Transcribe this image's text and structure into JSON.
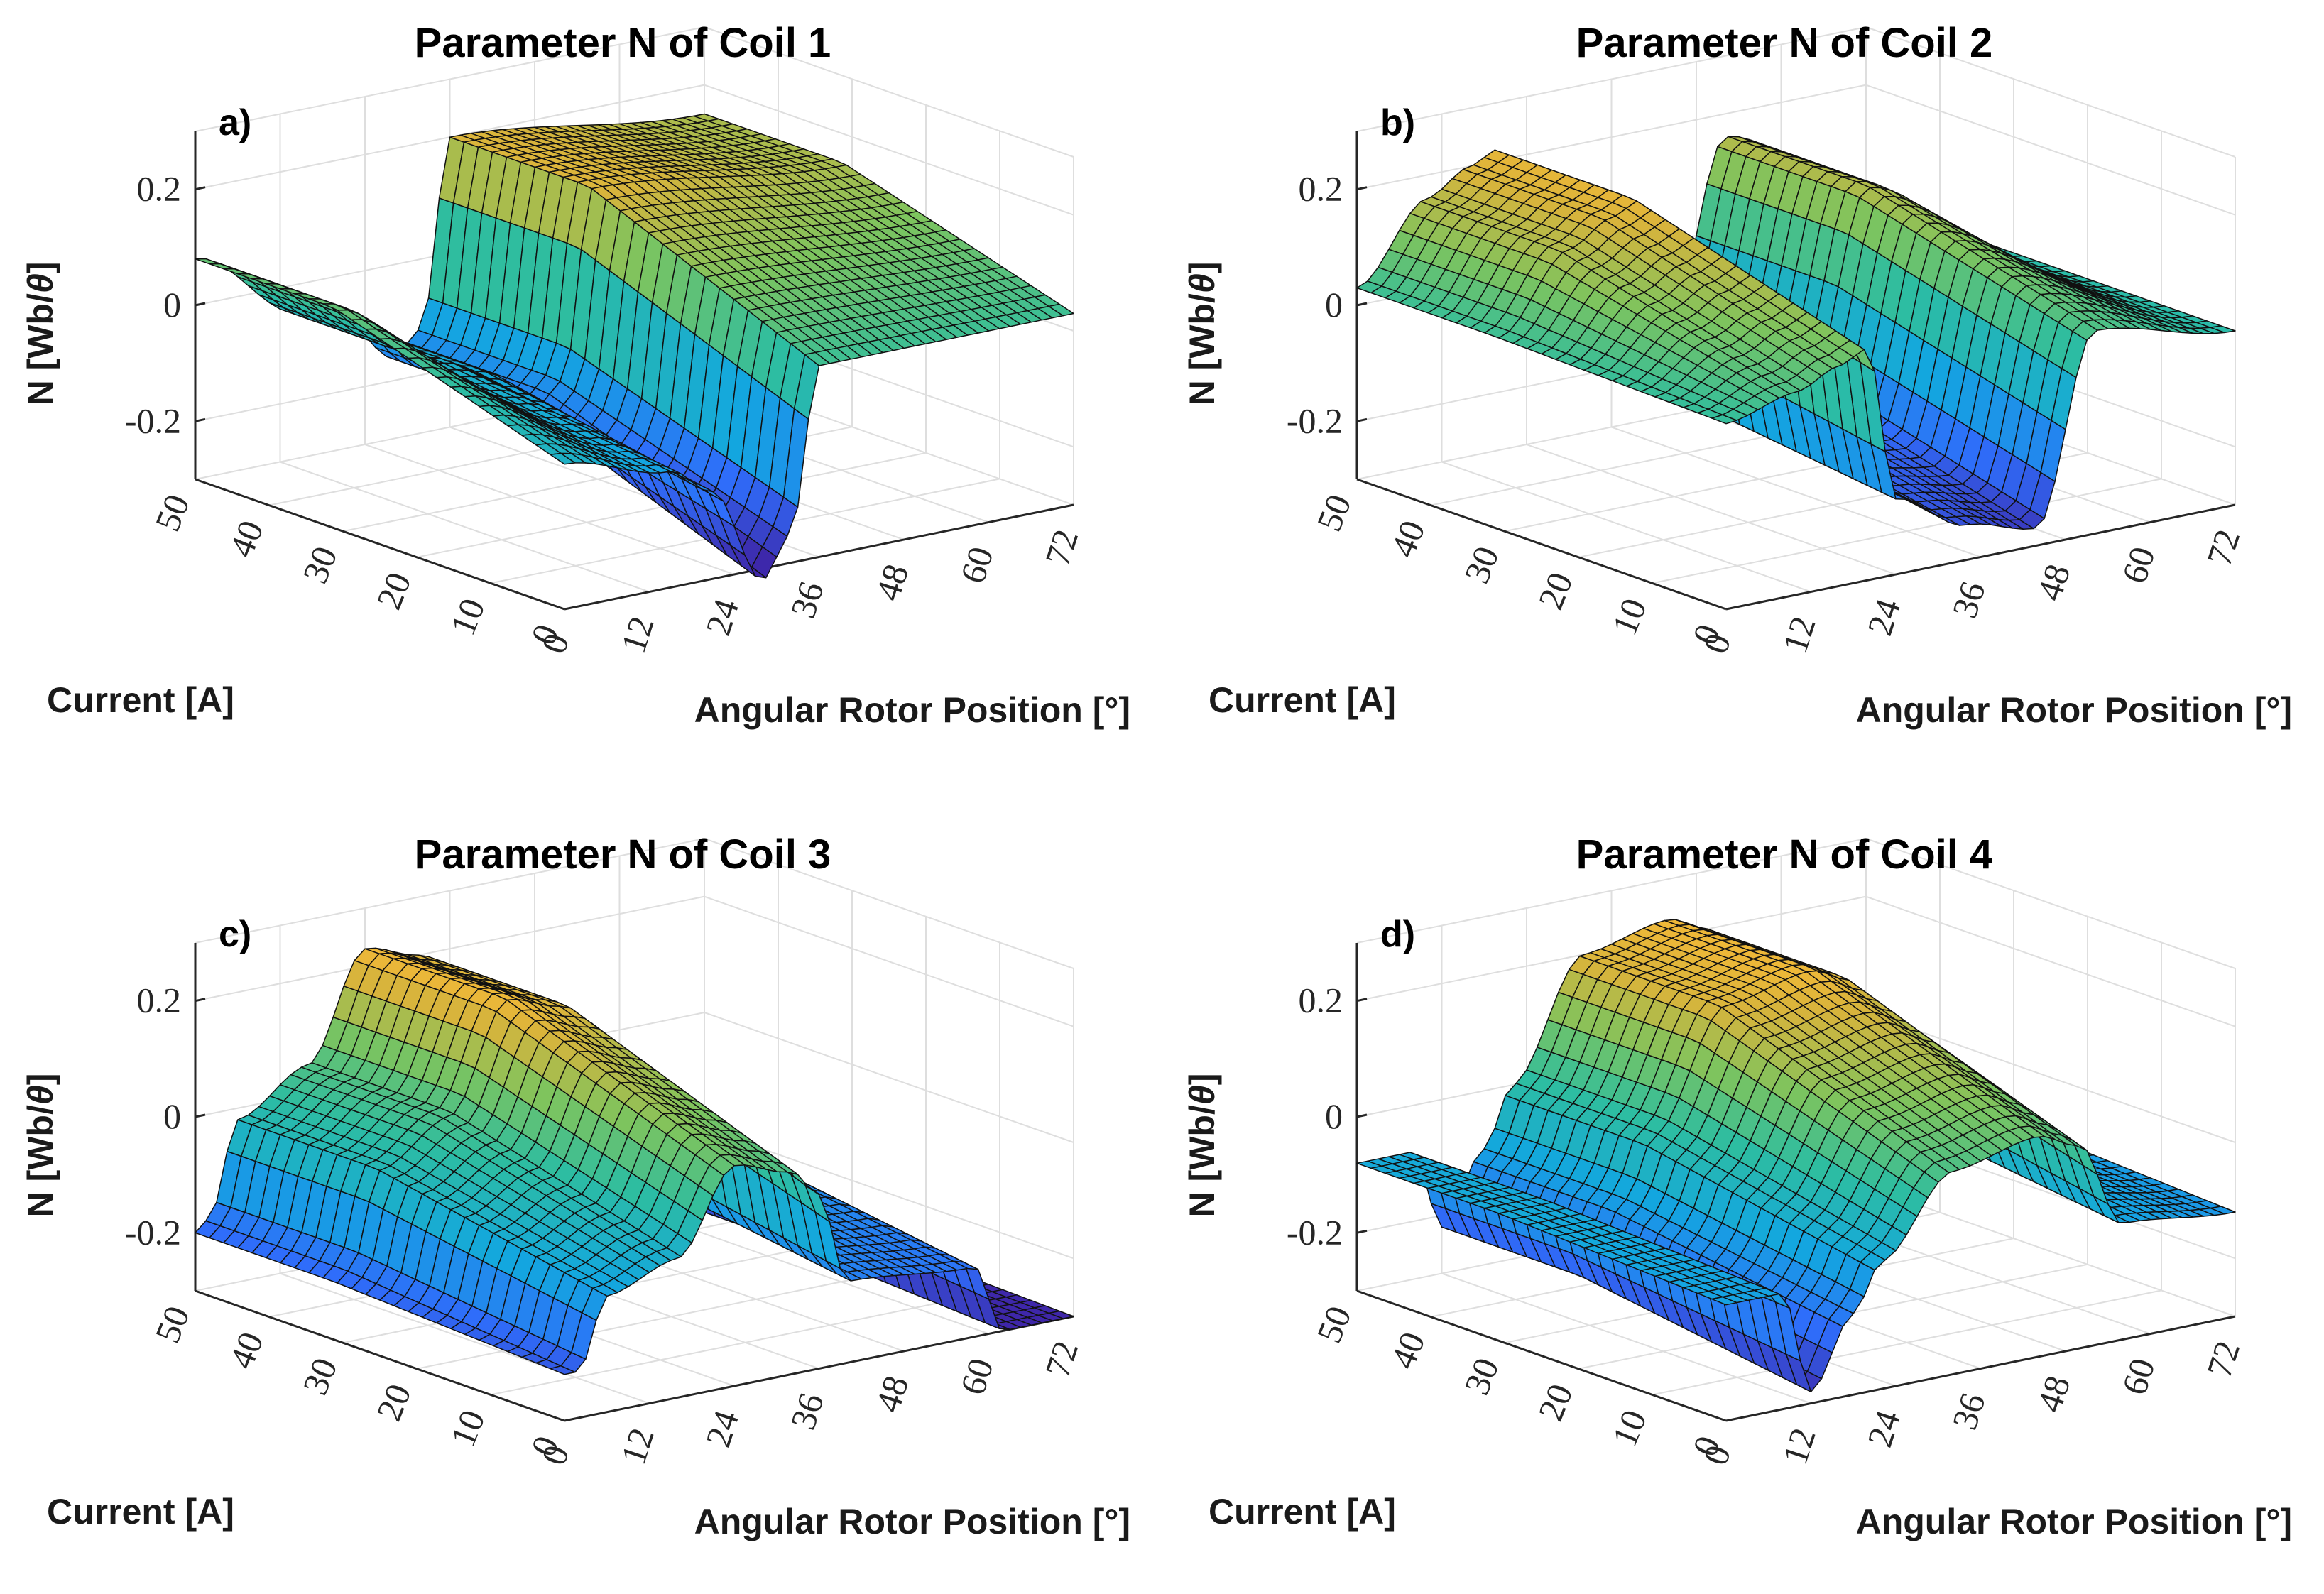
{
  "chart_data": [
    {
      "type": "surface3d",
      "panel_label": "a)",
      "title": "Parameter N of Coil 1",
      "xlabel": "Angular Rotor Position [°]",
      "ylabel": "Current [A]",
      "zlabel_main": "N [Wb/",
      "zlabel_symbol": "θ",
      "zlabel_end": "]",
      "x_ticks": [
        "0",
        "12",
        "24",
        "36",
        "48",
        "60",
        "72"
      ],
      "y_ticks": [
        "0",
        "10",
        "20",
        "30",
        "40",
        "50"
      ],
      "z_ticks": [
        "0.2",
        "0",
        "-0.2"
      ],
      "xlim": [
        0,
        72
      ],
      "ylim": [
        0,
        50
      ],
      "zlim": [
        -0.3,
        0.3
      ],
      "x_knots": [
        0,
        15,
        21,
        28,
        32,
        36,
        72
      ],
      "z_at_high_current": [
        0.08,
        -0.05,
        -0.08,
        -0.16,
        -0.12,
        0.2,
        0.15
      ],
      "z_at_zero_current": [
        -0.05,
        -0.1,
        -0.15,
        -0.32,
        -0.25,
        0.03,
        0.03
      ]
    },
    {
      "type": "surface3d",
      "panel_label": "b)",
      "title": "Parameter N of Coil 2",
      "xlabel": "Angular Rotor Position [°]",
      "ylabel": "Current [A]",
      "zlabel_main": "N [Wb/",
      "zlabel_symbol": "θ",
      "zlabel_end": "]",
      "x_ticks": [
        "0",
        "12",
        "24",
        "36",
        "48",
        "60",
        "72"
      ],
      "y_ticks": [
        "0",
        "10",
        "20",
        "30",
        "40",
        "50"
      ],
      "z_ticks": [
        "0.2",
        "0",
        "-0.2"
      ],
      "xlim": [
        0,
        72
      ],
      "ylim": [
        0,
        50
      ],
      "zlim": [
        -0.3,
        0.3
      ],
      "x_knots": [
        0,
        10,
        16,
        20,
        24,
        34,
        44,
        52,
        72
      ],
      "z_at_high_current": [
        0.03,
        0.16,
        0.2,
        0.22,
        -0.12,
        -0.16,
        -0.16,
        0.16,
        0.0
      ],
      "z_at_zero_current": [
        0.02,
        0.05,
        0.08,
        0.1,
        -0.17,
        -0.24,
        -0.27,
        0.05,
        0.0
      ]
    },
    {
      "type": "surface3d",
      "panel_label": "c)",
      "title": "Parameter N of Coil 3",
      "xlabel": "Angular Rotor Position [°]",
      "ylabel": "Current [A]",
      "zlabel_main": "N [Wb/",
      "zlabel_symbol": "θ",
      "zlabel_end": "]",
      "x_ticks": [
        "0",
        "12",
        "24",
        "36",
        "48",
        "60",
        "72"
      ],
      "y_ticks": [
        "0",
        "10",
        "20",
        "30",
        "40",
        "50"
      ],
      "z_ticks": [
        "0.2",
        "0",
        "-0.2"
      ],
      "xlim": [
        0,
        72
      ],
      "ylim": [
        0,
        50
      ],
      "zlim": [
        -0.3,
        0.3
      ],
      "x_knots": [
        0,
        2,
        6,
        16,
        24,
        32,
        36,
        40,
        58,
        62,
        72
      ],
      "z_at_high_current": [
        -0.2,
        -0.18,
        -0.02,
        0.05,
        0.23,
        0.2,
        0.16,
        -0.1,
        -0.12,
        -0.28,
        -0.29
      ],
      "z_at_zero_current": [
        -0.22,
        -0.22,
        -0.1,
        -0.06,
        0.08,
        0.05,
        0.0,
        -0.16,
        -0.18,
        -0.3,
        -0.3
      ]
    },
    {
      "type": "surface3d",
      "panel_label": "d)",
      "title": "Parameter N of Coil 4",
      "xlabel": "Angular Rotor Position [°]",
      "ylabel": "Current [A]",
      "zlabel_main": "N [Wb/",
      "zlabel_symbol": "θ",
      "zlabel_end": "]",
      "x_ticks": [
        "0",
        "12",
        "24",
        "36",
        "48",
        "60",
        "72"
      ],
      "y_ticks": [
        "0",
        "10",
        "20",
        "30",
        "40",
        "50"
      ],
      "z_ticks": [
        "0.2",
        "0",
        "-0.2"
      ],
      "xlim": [
        0,
        72
      ],
      "ylim": [
        0,
        50
      ],
      "zlim": [
        -0.3,
        0.3
      ],
      "x_knots": [
        0,
        8,
        12,
        18,
        22,
        32,
        44,
        50,
        56,
        72
      ],
      "z_at_high_current": [
        -0.08,
        -0.08,
        -0.22,
        -0.1,
        0.0,
        0.2,
        0.23,
        0.2,
        -0.05,
        -0.1
      ],
      "z_at_zero_current": [
        -0.1,
        -0.1,
        -0.28,
        -0.16,
        -0.08,
        0.05,
        0.08,
        0.05,
        -0.1,
        -0.12
      ]
    }
  ]
}
